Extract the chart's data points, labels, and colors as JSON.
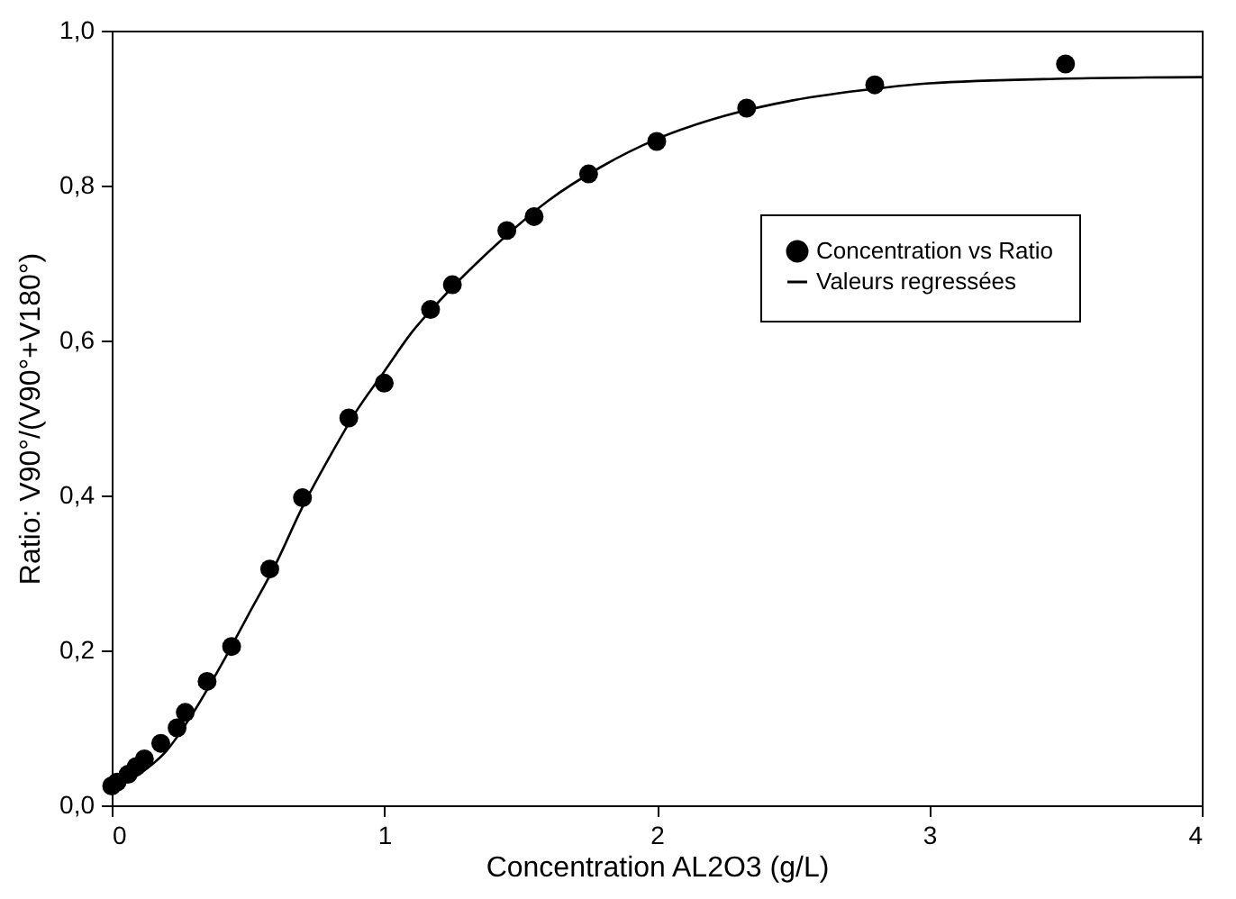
{
  "chart_data": {
    "type": "scatter",
    "xlabel": "Concentration AL2O3 (g/L)",
    "ylabel": "Ratio: V90°/(V90°+V180°)",
    "xlim": [
      0,
      4
    ],
    "xticks": [
      0,
      1,
      2,
      3,
      4
    ],
    "ylim": [
      0,
      1
    ],
    "yticks": [
      {
        "value": 0,
        "label": "0,0"
      },
      {
        "value": 0.2,
        "label": "0,2"
      },
      {
        "value": 0.4,
        "label": "0,4"
      },
      {
        "value": 0.6,
        "label": "0,6"
      },
      {
        "value": 0.8,
        "label": "0,8"
      },
      {
        "value": 1,
        "label": "1,0"
      }
    ],
    "grid": false,
    "legend": "top right",
    "series": [
      {
        "name": "Concentration vs Ratio",
        "marker": "circle",
        "color": "#000000",
        "x": [
          0,
          0.02,
          0.06,
          0.09,
          0.12,
          0.18,
          0.24,
          0.27,
          0.35,
          0.44,
          0.58,
          0.7,
          0.87,
          1.0,
          1.17,
          1.25,
          1.45,
          1.55,
          1.75,
          2.0,
          2.33,
          2.8,
          3.5
        ],
        "values": [
          0.025,
          0.03,
          0.04,
          0.05,
          0.06,
          0.08,
          0.1,
          0.12,
          0.16,
          0.205,
          0.305,
          0.397,
          0.5,
          0.545,
          0.64,
          0.672,
          0.742,
          0.76,
          0.815,
          0.857,
          0.9,
          0.93,
          0.957
        ]
      },
      {
        "name": "Valeurs regressées",
        "type": "line",
        "marker": "none",
        "color": "#000000",
        "x": [
          0,
          0.1,
          0.2,
          0.3,
          0.4,
          0.5,
          0.6,
          0.7,
          0.8,
          0.9,
          1.0,
          1.1,
          1.2,
          1.4,
          1.6,
          1.8,
          2.0,
          2.25,
          2.5,
          2.8,
          3.0,
          3.5,
          4.0
        ],
        "values": [
          0.02,
          0.04,
          0.07,
          0.12,
          0.18,
          0.245,
          0.31,
          0.385,
          0.45,
          0.51,
          0.56,
          0.61,
          0.65,
          0.72,
          0.78,
          0.825,
          0.86,
          0.89,
          0.91,
          0.925,
          0.932,
          0.938,
          0.94
        ]
      }
    ]
  }
}
